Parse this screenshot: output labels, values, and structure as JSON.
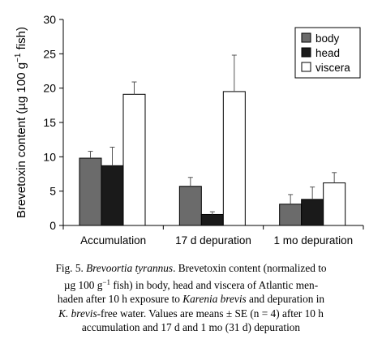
{
  "chart_data": {
    "type": "bar",
    "ylabel_parts": [
      "Brevetoxin content (µg 100 g",
      "−1",
      " fish)"
    ],
    "ylim": [
      0,
      30
    ],
    "yticks": [
      "0",
      "5",
      "10",
      "15",
      "20",
      "25",
      "30"
    ],
    "ytick_values": [
      0,
      5,
      10,
      15,
      20,
      25,
      30
    ],
    "categories": [
      "Accumulation",
      "17 d depuration",
      "1 mo depuration"
    ],
    "series": [
      {
        "name": "body",
        "color": "#6b6b6b",
        "values": [
          9.8,
          5.7,
          3.1
        ],
        "errors": [
          1.0,
          1.3,
          1.4
        ]
      },
      {
        "name": "head",
        "color": "#1a1a1a",
        "values": [
          8.7,
          1.6,
          3.8
        ],
        "errors": [
          2.7,
          0.4,
          1.8
        ]
      },
      {
        "name": "viscera",
        "color": "#ffffff",
        "values": [
          19.1,
          19.5,
          6.2
        ],
        "errors": [
          1.8,
          5.3,
          1.5
        ]
      }
    ],
    "legend_position": "top-right",
    "grid": false
  },
  "caption": {
    "line1": {
      "prefix": "Fig. 5. ",
      "species": "Brevoortia tyrannus",
      "rest": ". Brevetoxin content (normalized to"
    },
    "line2": {
      "prefix": "µg 100 g",
      "sup": "−1",
      "rest": " fish) in body, head and viscera of Atlantic men-"
    },
    "line3": {
      "prefix": "haden after 10 h exposure to ",
      "species": "Karenia brevis",
      "rest": " and depuration in"
    },
    "line4": {
      "species": "K. brevis",
      "rest": "-free water. Values are means ± SE (n = 4) after 10 h"
    },
    "line5": "accumulation and 17 d and 1 mo (31 d) depuration"
  }
}
